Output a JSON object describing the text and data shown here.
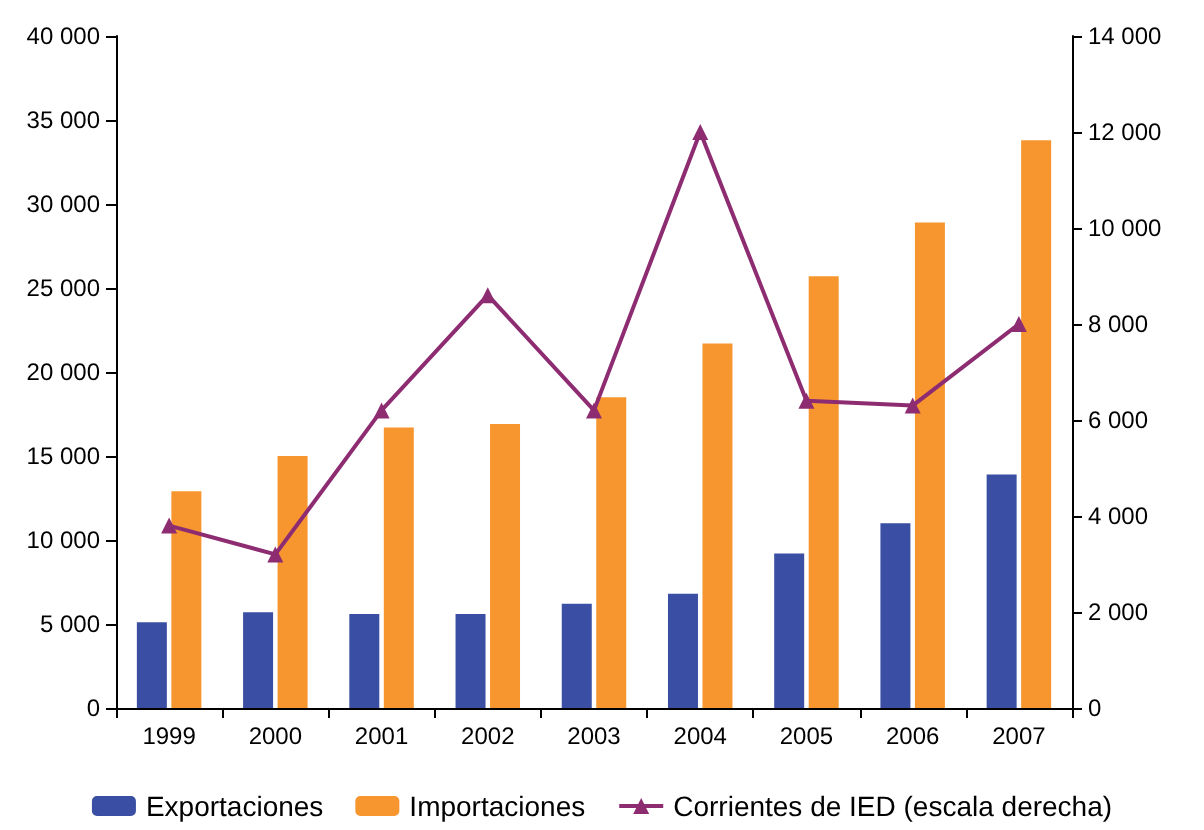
{
  "chart_data": {
    "type": "bar",
    "categories": [
      "1999",
      "2000",
      "2001",
      "2002",
      "2003",
      "2004",
      "2005",
      "2006",
      "2007"
    ],
    "series": [
      {
        "name": "Exportaciones",
        "color": "#3a4fa3",
        "values": [
          5100,
          5700,
          5600,
          5600,
          6200,
          6800,
          9200,
          11000,
          13900
        ]
      },
      {
        "name": "Importaciones",
        "color": "#f7962e",
        "values": [
          12900,
          15000,
          16700,
          16900,
          18500,
          21700,
          25700,
          28900,
          33800
        ]
      },
      {
        "name": "Corrientes de IED (escala derecha)",
        "type": "line",
        "axis": "y2",
        "color": "#8e2c72",
        "values": [
          3800,
          3200,
          6200,
          8600,
          6200,
          12000,
          6400,
          6300,
          8000
        ]
      }
    ],
    "ylim": [
      0,
      40000
    ],
    "yticks": [
      0,
      {
        "value": 5000,
        "label": "5 000"
      },
      {
        "value": 10000,
        "label": "10 000"
      },
      {
        "value": 15000,
        "label": "15 000"
      },
      {
        "value": 20000,
        "label": "20 000"
      },
      {
        "value": 25000,
        "label": "25 000"
      },
      {
        "value": 30000,
        "label": "30 000"
      },
      {
        "value": 35000,
        "label": "35 000"
      },
      {
        "value": 40000,
        "label": "40 000"
      }
    ],
    "y2lim": [
      0,
      14000
    ],
    "y2ticks": [
      0,
      {
        "value": 2000,
        "label": "2 000"
      },
      {
        "value": 4000,
        "label": "4 000"
      },
      {
        "value": 6000,
        "label": "6 000"
      },
      {
        "value": 8000,
        "label": "8 000"
      },
      {
        "value": 10000,
        "label": "10 000"
      },
      {
        "value": 12000,
        "label": "12 000"
      },
      {
        "value": 14000,
        "label": "14 000"
      }
    ],
    "marker": "triangle",
    "grid": false,
    "legend": "bottom"
  }
}
